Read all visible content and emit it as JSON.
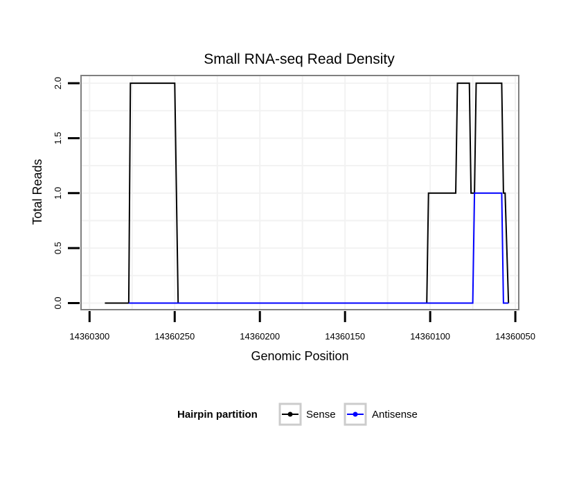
{
  "chart_data": {
    "type": "line",
    "title": "Small RNA-seq Read Density",
    "xlabel": "Genomic Position",
    "ylabel": "Total Reads",
    "x_reversed": true,
    "xlim": [
      14360305,
      14360048
    ],
    "ylim": [
      -0.06,
      2.07
    ],
    "x_ticks": [
      14360300,
      14360250,
      14360200,
      14360150,
      14360100,
      14360050
    ],
    "y_ticks": [
      0.0,
      0.5,
      1.0,
      1.5,
      2.0
    ],
    "y_tick_labels": [
      "0.0",
      "0.5",
      "1.0",
      "1.5",
      "2.0"
    ],
    "grid": true,
    "legend": {
      "title": "Hairpin partition",
      "position": "bottom",
      "entries": [
        "Sense",
        "Antisense"
      ]
    },
    "series": [
      {
        "name": "Sense",
        "color": "#000000",
        "x": [
          14360291,
          14360277,
          14360276,
          14360250,
          14360248,
          14360102,
          14360101,
          14360085,
          14360084,
          14360077,
          14360076,
          14360074,
          14360073,
          14360058,
          14360057,
          14360056,
          14360054
        ],
        "y": [
          0,
          0,
          2,
          2,
          0,
          0,
          1,
          1,
          2,
          2,
          1,
          1,
          2,
          2,
          1,
          1,
          0
        ]
      },
      {
        "name": "Antisense",
        "color": "#0000ff",
        "x": [
          14360277,
          14360250,
          14360102,
          14360075,
          14360074,
          14360058,
          14360057,
          14360054
        ],
        "y": [
          0,
          0,
          0,
          0,
          1,
          1,
          0,
          0
        ]
      }
    ]
  }
}
